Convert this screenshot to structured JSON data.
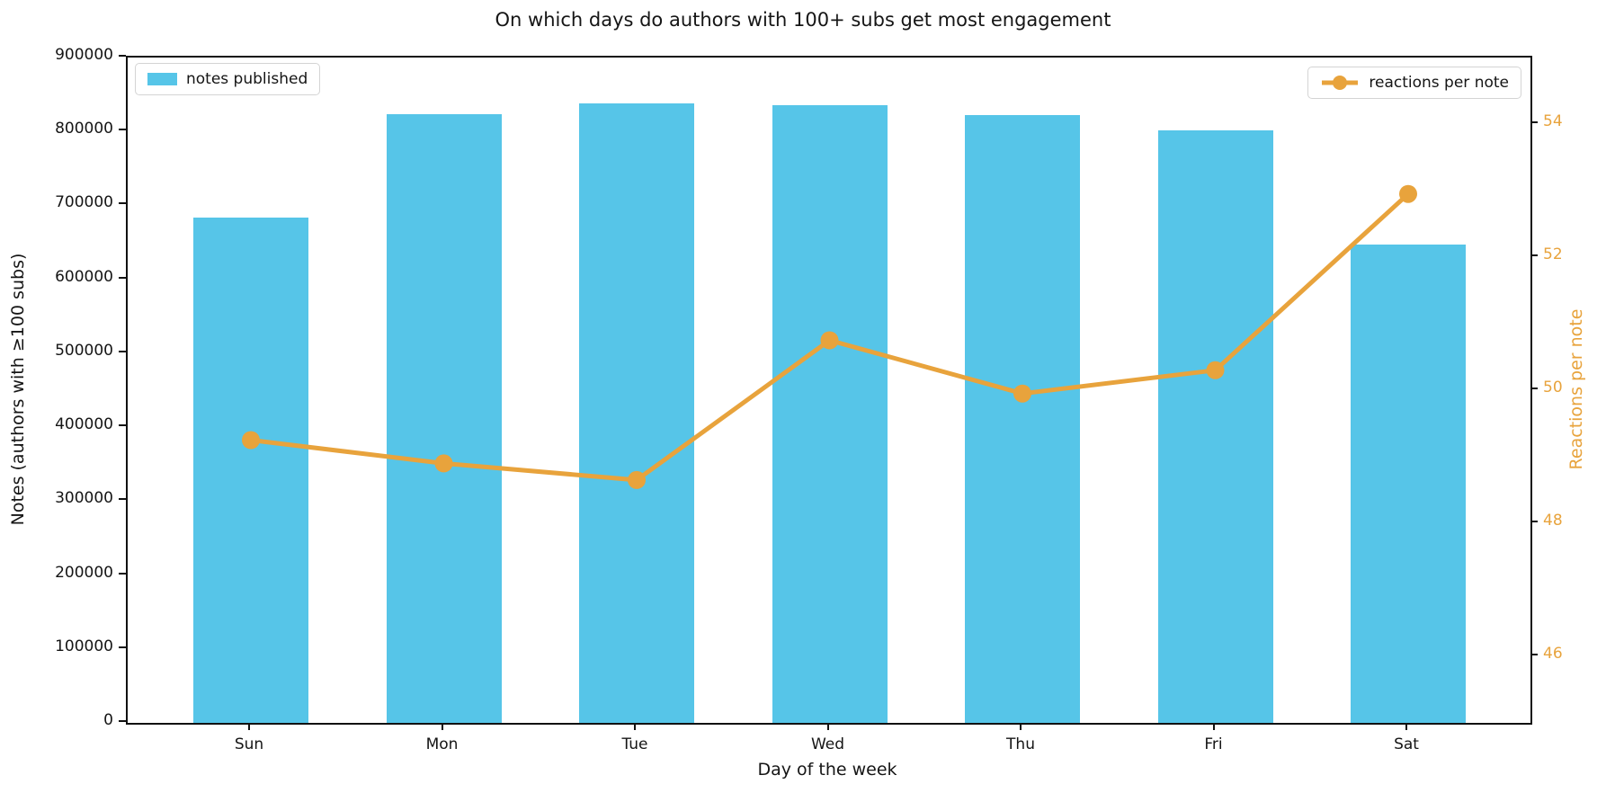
{
  "chart_data": {
    "type": "bar+line",
    "title": "On which days do authors with 100+ subs get most engagement",
    "xlabel": "Day of the week",
    "ylabel_left": "Notes (authors with ≥100 subs)",
    "ylabel_right": "Reactions per note",
    "categories": [
      "Sun",
      "Mon",
      "Tue",
      "Wed",
      "Thu",
      "Fri",
      "Sat"
    ],
    "series": [
      {
        "name": "notes published",
        "type": "bar",
        "axis": "left",
        "color": "#56C5E8",
        "values": [
          683000,
          823000,
          838000,
          835000,
          822000,
          802000,
          647000
        ]
      },
      {
        "name": "reactions per note",
        "type": "line",
        "axis": "right",
        "color": "#E8A33C",
        "values": [
          49.25,
          48.9,
          48.65,
          50.75,
          49.95,
          50.3,
          52.95
        ]
      }
    ],
    "ylim_left": [
      0,
      900000
    ],
    "ylim_right": [
      45,
      55
    ],
    "yticks_left": [
      0,
      100000,
      200000,
      300000,
      400000,
      500000,
      600000,
      700000,
      800000,
      900000
    ],
    "yticks_right": [
      46,
      48,
      50,
      52,
      54
    ],
    "grid": false,
    "legend_positions": [
      "upper left",
      "upper right"
    ],
    "colors": {
      "bar": "#56C5E8",
      "line": "#E8A33C",
      "axis": "#111111",
      "left_tick_labels": "#151515",
      "right_tick_labels": "#E8A33C",
      "background": "#FFFFFF"
    }
  }
}
